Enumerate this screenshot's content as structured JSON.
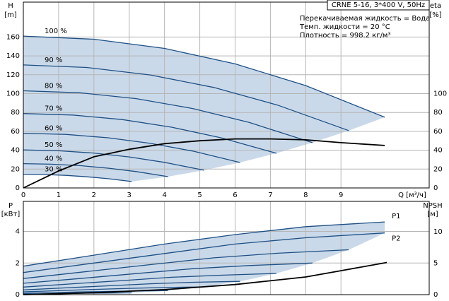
{
  "chart_data": [
    {
      "type": "line",
      "title": "CRNE 5-16, 3*400 V, 50Hz",
      "annotations": [
        "Перекачиваемая жидкость = Вода",
        "Темп. жидкости = 20 °C",
        "Плотность = 998.2 кг/м³"
      ],
      "y_label": "H",
      "y_unit": "[m]",
      "y2_label": "eta",
      "y2_unit": "[%]",
      "x_label": "Q [м³/ч]",
      "xlim": [
        0,
        11.5
      ],
      "xticks": [
        0,
        1,
        2,
        3,
        4,
        5,
        6,
        7,
        8,
        9
      ],
      "ylim": [
        0,
        197
      ],
      "yticks": [
        0,
        20,
        40,
        60,
        80,
        100,
        120,
        140,
        160
      ],
      "y2lim": [
        0,
        197
      ],
      "y2ticks": [
        0,
        20,
        40,
        60,
        80,
        100
      ],
      "grid": true,
      "region_color": "#cad9e9",
      "series": [
        {
          "name": "100 %",
          "color": "#1d4f86",
          "x": [
            0,
            2,
            4,
            6,
            8,
            10.24
          ],
          "values": [
            161,
            157.7,
            147.9,
            131.5,
            108.5,
            75
          ]
        },
        {
          "name": "90 %",
          "color": "#1d4f86",
          "x": [
            0,
            1.8,
            3.6,
            5.4,
            7.2,
            9.22
          ],
          "values": [
            130.4,
            127.7,
            119.8,
            106.5,
            87.9,
            60.8
          ]
        },
        {
          "name": "80 %",
          "color": "#1d4f86",
          "x": [
            0,
            1.6,
            3.2,
            4.8,
            6.4,
            8.19
          ],
          "values": [
            103.0,
            100.9,
            94.7,
            84.2,
            69.4,
            48.0
          ]
        },
        {
          "name": "70 %",
          "color": "#1d4f86",
          "x": [
            0,
            1.4,
            2.8,
            4.2,
            5.6,
            7.17
          ],
          "values": [
            78.9,
            77.3,
            72.5,
            64.4,
            53.2,
            36.8
          ]
        },
        {
          "name": "60 %",
          "color": "#1d4f86",
          "x": [
            0,
            1.2,
            2.4,
            3.6,
            4.8,
            6.14
          ],
          "values": [
            58.0,
            56.8,
            53.2,
            47.3,
            39.1,
            27.0
          ]
        },
        {
          "name": "50 %",
          "color": "#1d4f86",
          "x": [
            0,
            1,
            2,
            3,
            4,
            5.12
          ],
          "values": [
            40.3,
            39.4,
            37.0,
            32.9,
            27.1,
            18.8
          ]
        },
        {
          "name": "40 %",
          "color": "#1d4f86",
          "x": [
            0,
            0.8,
            1.6,
            2.4,
            3.2,
            4.1
          ],
          "values": [
            25.8,
            25.2,
            23.7,
            21.0,
            17.4,
            12.0
          ]
        },
        {
          "name": "30 %",
          "color": "#1d4f86",
          "x": [
            0,
            0.6,
            1.2,
            1.8,
            2.4,
            3.07
          ],
          "values": [
            14.5,
            14.2,
            13.3,
            11.8,
            9.8,
            6.8
          ]
        },
        {
          "axis": "y2",
          "color": "#000000",
          "x": [
            0,
            1,
            2,
            3,
            4,
            5,
            6,
            7,
            8,
            9,
            10.24
          ],
          "values": [
            0,
            18,
            33,
            41,
            47,
            50,
            52,
            52,
            51,
            48,
            45
          ]
        }
      ]
    },
    {
      "type": "line",
      "y_label": "P",
      "y_unit": "[кВт]",
      "y2_label": "NPSH",
      "y2_unit": "[м]",
      "xlim": [
        0,
        11.5
      ],
      "ylim": [
        0,
        5.9
      ],
      "yticks": [
        0,
        2,
        4
      ],
      "y2lim": [
        0,
        14.8
      ],
      "y2ticks": [
        0,
        5,
        10
      ],
      "grid": true,
      "region_color": "#cad9e9",
      "series": [
        {
          "name": "P1",
          "color": "#1d4f86",
          "x": [
            0,
            2,
            4,
            6,
            8,
            10.24
          ],
          "values": [
            1.8,
            2.5,
            3.2,
            3.8,
            4.3,
            4.6
          ]
        },
        {
          "name": "P2",
          "color": "#1d4f86",
          "x": [
            0,
            2,
            4,
            6,
            8,
            10.24
          ],
          "values": [
            1.4,
            2.0,
            2.6,
            3.2,
            3.6,
            3.9
          ]
        },
        {
          "color": "#1d4f86",
          "x": [
            0,
            1.8,
            3.6,
            5.4,
            7.2,
            9.22
          ],
          "values": [
            1.02,
            1.46,
            1.9,
            2.33,
            2.62,
            2.84
          ]
        },
        {
          "color": "#1d4f86",
          "x": [
            0,
            1.6,
            3.2,
            4.8,
            6.4,
            8.19
          ],
          "values": [
            0.72,
            1.02,
            1.33,
            1.64,
            1.84,
            2.0
          ]
        },
        {
          "color": "#1d4f86",
          "x": [
            0,
            1.4,
            2.8,
            4.2,
            5.6,
            7.17
          ],
          "values": [
            0.48,
            0.69,
            0.89,
            1.1,
            1.23,
            1.34
          ]
        },
        {
          "color": "#1d4f86",
          "x": [
            0,
            1.2,
            2.4,
            3.6,
            4.8,
            6.14
          ],
          "values": [
            0.3,
            0.43,
            0.56,
            0.69,
            0.78,
            0.84
          ]
        },
        {
          "color": "#1d4f86",
          "x": [
            0,
            1,
            2,
            3,
            4,
            5.12
          ],
          "values": [
            0.18,
            0.25,
            0.33,
            0.4,
            0.45,
            0.49
          ]
        },
        {
          "color": "#1d4f86",
          "x": [
            0,
            0.8,
            1.6,
            2.4,
            3.2,
            4.1
          ],
          "values": [
            0.09,
            0.13,
            0.17,
            0.2,
            0.23,
            0.25
          ]
        },
        {
          "color": "#1d4f86",
          "x": [
            0,
            0.6,
            1.2,
            1.8,
            2.4,
            3.07
          ],
          "values": [
            0.04,
            0.05,
            0.07,
            0.09,
            0.1,
            0.11
          ]
        },
        {
          "axis": "y2",
          "color": "#000000",
          "x": [
            0,
            2,
            4,
            6,
            8,
            9,
            10.3
          ],
          "values": [
            0,
            0.3,
            0.8,
            1.6,
            2.8,
            3.8,
            5.1
          ]
        }
      ]
    }
  ]
}
